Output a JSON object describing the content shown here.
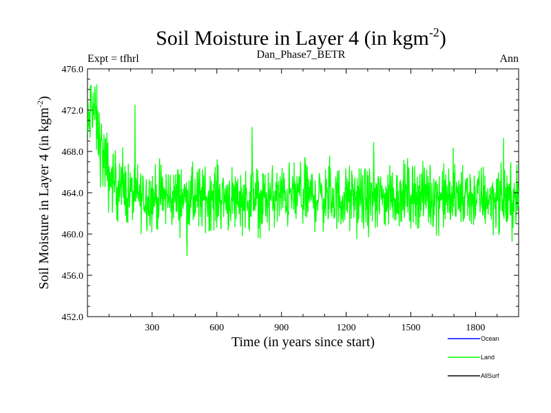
{
  "chart_data": {
    "type": "line",
    "title_main": "Soil Moisture in Layer 4 (in kgm",
    "title_sup": "-2",
    "title_close": ")",
    "subtitle_left": "Expt = tfhrl",
    "subtitle_center": "Dan_Phase7_BETR",
    "subtitle_right": "Ann",
    "xlabel": "Time (in years since start)",
    "ylabel_main": "Soil Moisture in Layer 4 (in kgm",
    "ylabel_sup": "-2",
    "ylabel_close": ")",
    "xlim": [
      0,
      2000
    ],
    "ylim": [
      452,
      476
    ],
    "x_ticks": [
      300,
      600,
      900,
      1200,
      1500,
      1800
    ],
    "x_tick_labels": [
      "300",
      "600",
      "900",
      "1200",
      "1500",
      "1800"
    ],
    "y_ticks": [
      452,
      456,
      460,
      464,
      468,
      472,
      476
    ],
    "y_tick_labels": [
      "452.0",
      "456.0",
      "460.0",
      "464.0",
      "468.0",
      "472.0",
      "476.0"
    ],
    "colors": {
      "Ocean": "#0000ff",
      "Land": "#00ff00",
      "AllSurf": "#000000"
    },
    "legend": [
      "Ocean",
      "Land",
      "AllSurf"
    ],
    "series": [
      {
        "name": "Land",
        "x": [
          0,
          20,
          40,
          60,
          80,
          100,
          150,
          200,
          300,
          400,
          500,
          600,
          700,
          800,
          900,
          1000,
          1100,
          1200,
          1300,
          1400,
          1500,
          1600,
          1700,
          1800,
          1900,
          2000
        ],
        "values": [
          469.5,
          473.0,
          471.0,
          468.5,
          467.0,
          465.5,
          464.5,
          463.8,
          463.5,
          463.6,
          463.4,
          463.7,
          463.5,
          463.3,
          463.6,
          463.8,
          463.5,
          463.4,
          463.3,
          463.6,
          463.9,
          463.7,
          463.5,
          463.6,
          463.4,
          463.3
        ]
      }
    ]
  }
}
